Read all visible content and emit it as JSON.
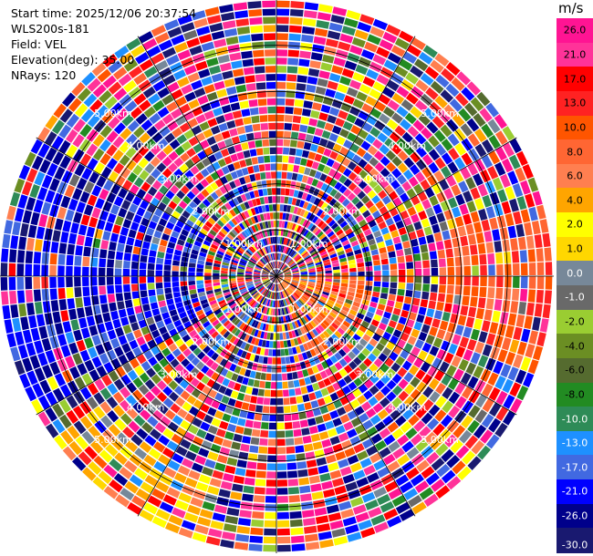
{
  "header": {
    "start_time": "Start time: 2025/12/06 20:37:54",
    "instrument": "WLS200s-181",
    "field": "Field: VEL",
    "elevation": "Elevation(deg): 35.00",
    "nrays": "NRays: 120"
  },
  "colorbar": {
    "title": "m/s",
    "bands": [
      {
        "lo": 26,
        "hi": 30,
        "color": "#ff1493"
      },
      {
        "lo": 21,
        "hi": 26,
        "color": "#ff3399"
      },
      {
        "lo": 17,
        "hi": 21,
        "color": "#ff0000"
      },
      {
        "lo": 13,
        "hi": 17,
        "color": "#ff2222"
      },
      {
        "lo": 10,
        "hi": 13,
        "color": "#ff5500"
      },
      {
        "lo": 8,
        "hi": 10,
        "color": "#ff6633"
      },
      {
        "lo": 6,
        "hi": 8,
        "color": "#ff7f50"
      },
      {
        "lo": 4,
        "hi": 6,
        "color": "#ffa500"
      },
      {
        "lo": 2,
        "hi": 4,
        "color": "#ffff00"
      },
      {
        "lo": 1,
        "hi": 2,
        "color": "#ffd700"
      },
      {
        "lo": 0,
        "hi": 1,
        "color": "#778899"
      },
      {
        "lo": -1,
        "hi": 0,
        "color": "#696969"
      },
      {
        "lo": -2,
        "hi": -1,
        "color": "#9acd32"
      },
      {
        "lo": -4,
        "hi": -2,
        "color": "#6b8e23"
      },
      {
        "lo": -6,
        "hi": -4,
        "color": "#556b2f"
      },
      {
        "lo": -8,
        "hi": -6,
        "color": "#228b22"
      },
      {
        "lo": -10,
        "hi": -8,
        "color": "#2e8b57"
      },
      {
        "lo": -13,
        "hi": -10,
        "color": "#1e90ff"
      },
      {
        "lo": -17,
        "hi": -13,
        "color": "#4169e1"
      },
      {
        "lo": -21,
        "hi": -17,
        "color": "#0000ff"
      },
      {
        "lo": -26,
        "hi": -21,
        "color": "#00008b"
      },
      {
        "lo": -30,
        "hi": -26,
        "color": "#191970"
      }
    ],
    "ticks": [
      "26.0",
      "21.0",
      "17.0",
      "13.0",
      "10.0",
      "8.0",
      "6.0",
      "4.0",
      "2.0",
      "1.0",
      "0.0",
      "-1.0",
      "-2.0",
      "-4.0",
      "-6.0",
      "-8.0",
      "-10.0",
      "-13.0",
      "-17.0",
      "-21.0",
      "-26.0",
      "-30.0"
    ],
    "min": -30,
    "max": 30
  },
  "chart_data": {
    "type": "heatmap",
    "projection": "polar-ppi",
    "field": "VEL",
    "units": "m/s",
    "range_ring_labels": [
      "1.00km",
      "2.00km",
      "3.00km",
      "4.00km",
      "5.00km"
    ],
    "max_range_km": 6,
    "nrays": 120,
    "gates_per_ray": 34,
    "clim": [
      -30,
      30
    ],
    "sectors": [
      {
        "az_from": 240,
        "az_to": 300,
        "r_from_km": 1.5,
        "r_to_km": 6,
        "tendency": "strong negative (blue)"
      },
      {
        "az_from": 195,
        "az_to": 235,
        "r_from_km": 4.5,
        "r_to_km": 6,
        "tendency": "positive (yellow-orange)"
      },
      {
        "az_from": 75,
        "az_to": 110,
        "r_from_km": 3.5,
        "r_to_km": 6,
        "tendency": "positive (red-orange)"
      },
      {
        "az_from": 90,
        "az_to": 160,
        "r_from_km": 0,
        "r_to_km": 2,
        "tendency": "positive (orange-red)"
      }
    ],
    "texture": "noisy, alternating colors along every ray"
  }
}
